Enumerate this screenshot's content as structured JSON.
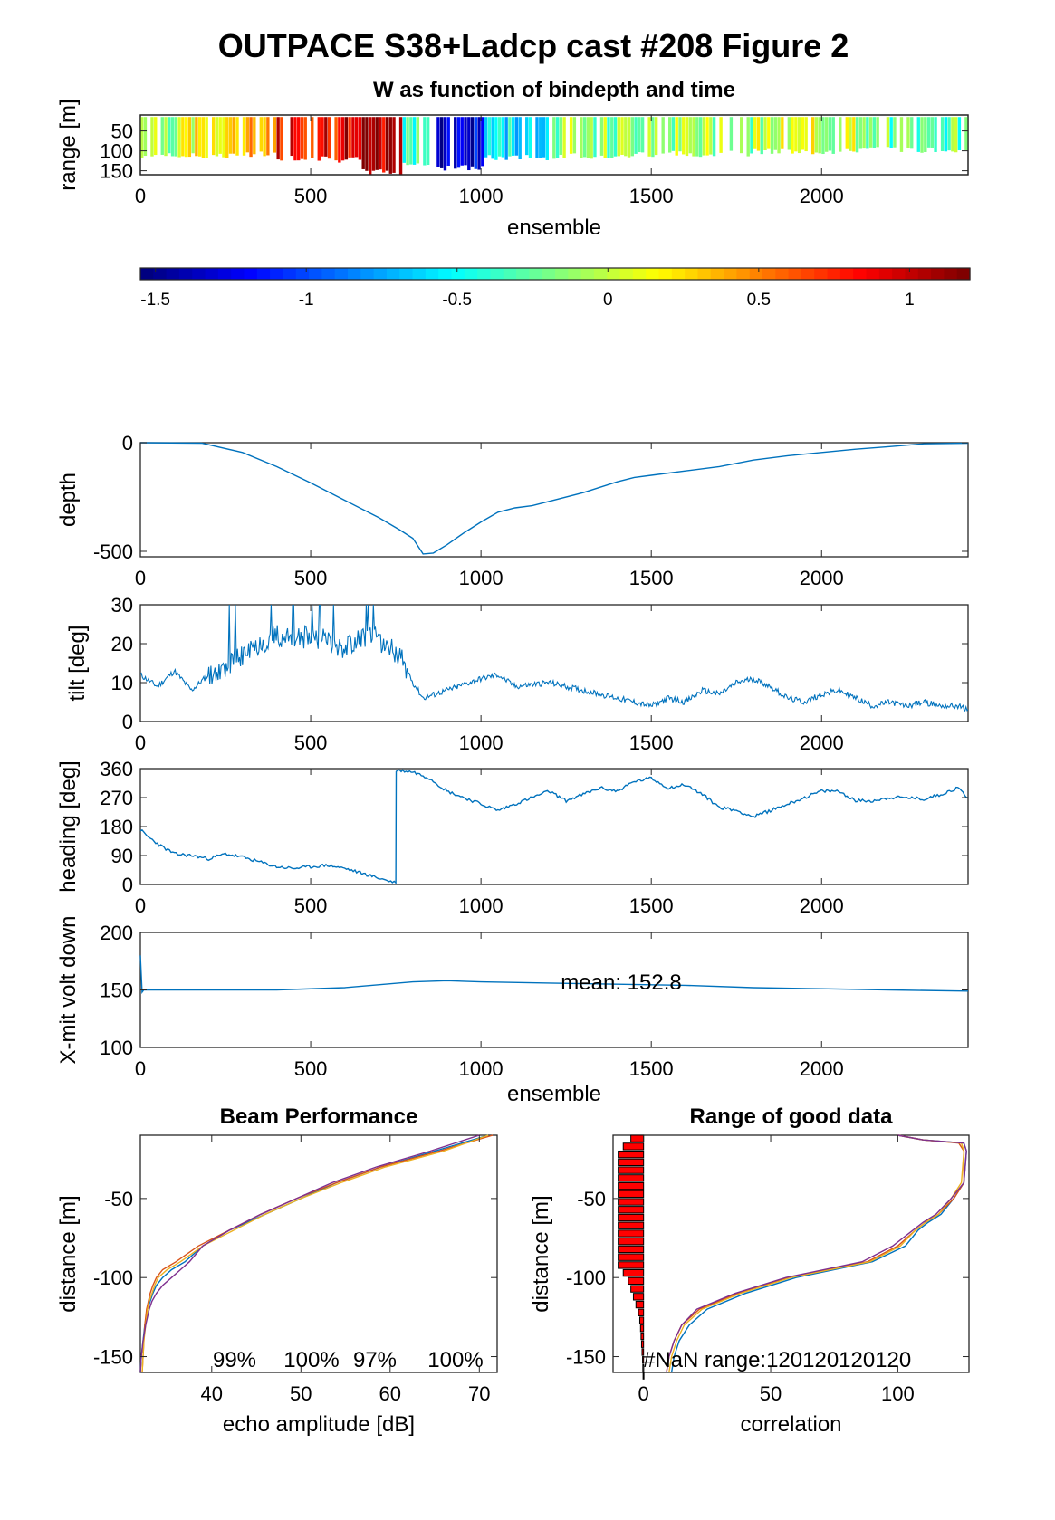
{
  "figure": {
    "title": "OUTPACE S38+Ladcp cast #208 Figure 2"
  },
  "colors": {
    "series_blue": "#0072BD",
    "series_red": "#D95319",
    "series_yellow": "#EDB120",
    "series_purple": "#7E2F8E",
    "bar_red": "#FF0000"
  },
  "chart_data": [
    {
      "id": "w_image",
      "type": "heatmap",
      "title": "W as function of bindepth and time",
      "xlabel": "ensemble",
      "ylabel": "range [m]",
      "xlim": [
        0,
        2430
      ],
      "ylim": [
        160,
        10
      ],
      "xticks": [
        0,
        500,
        1000,
        1500,
        2000
      ],
      "yticks": [
        50,
        100,
        150
      ],
      "colormap": "jet",
      "clim": [
        -1.55,
        1.2
      ],
      "colorbar_ticks": [
        "-1.5",
        "-1",
        "-0.5",
        "0",
        "0.5",
        "1"
      ],
      "colorbar_values": [
        -1.5,
        -1,
        -0.5,
        0,
        0.5,
        1
      ],
      "profiles": [
        {
          "x": [
            0,
            130
          ],
          "w": -0.05,
          "bottom": 120
        },
        {
          "x": [
            130,
            290
          ],
          "w": 0.15,
          "bottom": 120
        },
        {
          "x": [
            290,
            400
          ],
          "w": 0.3,
          "bottom": 115
        },
        {
          "x": [
            400,
            580
          ],
          "w": 0.85,
          "bottom": 125
        },
        {
          "x": [
            580,
            650
          ],
          "w": 0.95,
          "bottom": 130
        },
        {
          "x": [
            650,
            770
          ],
          "w": 1.05,
          "bottom": 160
        },
        {
          "x": [
            770,
            860
          ],
          "w": -0.35,
          "bottom": 140
        },
        {
          "x": [
            860,
            1010
          ],
          "w": -1.3,
          "bottom": 150
        },
        {
          "x": [
            1010,
            1200
          ],
          "w": -0.55,
          "bottom": 125
        },
        {
          "x": [
            1200,
            1450
          ],
          "w": -0.15,
          "bottom": 120
        },
        {
          "x": [
            1450,
            1800
          ],
          "w": -0.1,
          "bottom": 115
        },
        {
          "x": [
            1800,
            2100
          ],
          "w": 0.0,
          "bottom": 110
        },
        {
          "x": [
            2100,
            2430
          ],
          "w": -0.25,
          "bottom": 105
        }
      ]
    },
    {
      "id": "depth",
      "type": "line",
      "title": "",
      "xlabel": "",
      "ylabel": "depth",
      "xlim": [
        0,
        2430
      ],
      "ylim": [
        -525,
        0
      ],
      "xticks": [
        0,
        500,
        1000,
        1500,
        2000
      ],
      "yticks": [
        0,
        -500
      ],
      "x": [
        0,
        180,
        300,
        400,
        500,
        600,
        700,
        760,
        800,
        830,
        860,
        900,
        950,
        1000,
        1050,
        1100,
        1150,
        1200,
        1300,
        1400,
        1450,
        1500,
        1600,
        1700,
        1800,
        1900,
        2000,
        2100,
        2200,
        2300,
        2430
      ],
      "y": [
        0,
        -2,
        -45,
        -110,
        -185,
        -265,
        -345,
        -400,
        -440,
        -512,
        -508,
        -470,
        -415,
        -365,
        -320,
        -300,
        -290,
        -270,
        -230,
        -180,
        -160,
        -150,
        -130,
        -110,
        -80,
        -60,
        -45,
        -30,
        -18,
        -5,
        -2
      ]
    },
    {
      "id": "tilt",
      "type": "line",
      "title": "",
      "xlabel": "",
      "ylabel": "tilt [deg]",
      "xlim": [
        0,
        2430
      ],
      "ylim": [
        0,
        30
      ],
      "xticks": [
        0,
        500,
        1000,
        1500,
        2000
      ],
      "yticks": [
        0,
        10,
        20,
        30
      ],
      "x": [
        0,
        50,
        100,
        150,
        200,
        250,
        300,
        350,
        400,
        450,
        500,
        550,
        600,
        650,
        700,
        750,
        780,
        800,
        830,
        900,
        1000,
        1050,
        1100,
        1200,
        1300,
        1400,
        1450,
        1500,
        1550,
        1600,
        1650,
        1700,
        1750,
        1800,
        1850,
        1900,
        1950,
        2000,
        2050,
        2100,
        2150,
        2200,
        2250,
        2300,
        2350,
        2400,
        2430
      ],
      "y": [
        12,
        9,
        13,
        8,
        12,
        14,
        17,
        20,
        22,
        21,
        22,
        21,
        19,
        22,
        21,
        18,
        14,
        10,
        6,
        8,
        11,
        12,
        9,
        10,
        8,
        6,
        5,
        4,
        6,
        5,
        8,
        7,
        10,
        11,
        9,
        6,
        5,
        7,
        8,
        6,
        4,
        5,
        4,
        5,
        4,
        4,
        3
      ],
      "noise_start": 200,
      "noise_end": 780,
      "noise_max": 30
    },
    {
      "id": "heading",
      "type": "line",
      "title": "",
      "xlabel": "",
      "ylabel": "heading [deg]",
      "xlim": [
        0,
        2430
      ],
      "ylim": [
        0,
        360
      ],
      "xticks": [
        0,
        500,
        1000,
        1500,
        2000
      ],
      "yticks": [
        0,
        90,
        180,
        270,
        360
      ],
      "x": [
        0,
        20,
        60,
        100,
        150,
        200,
        250,
        300,
        350,
        400,
        450,
        500,
        550,
        600,
        650,
        700,
        750,
        751,
        800,
        850,
        900,
        1000,
        1050,
        1100,
        1150,
        1200,
        1250,
        1300,
        1350,
        1400,
        1450,
        1500,
        1550,
        1600,
        1650,
        1700,
        1750,
        1800,
        1850,
        1900,
        1950,
        2000,
        2050,
        2100,
        2150,
        2200,
        2250,
        2300,
        2350,
        2400,
        2430
      ],
      "y": [
        170,
        150,
        120,
        95,
        90,
        80,
        95,
        85,
        70,
        55,
        50,
        55,
        60,
        50,
        35,
        20,
        5,
        355,
        350,
        330,
        290,
        250,
        230,
        250,
        270,
        290,
        260,
        280,
        300,
        290,
        320,
        330,
        300,
        310,
        280,
        240,
        230,
        210,
        230,
        250,
        270,
        290,
        290,
        260,
        260,
        270,
        270,
        265,
        280,
        300,
        270
      ]
    },
    {
      "id": "xmit",
      "type": "line",
      "title": "",
      "xlabel": "ensemble",
      "ylabel": "X-mit volt down",
      "xlim": [
        0,
        2430
      ],
      "ylim": [
        100,
        200
      ],
      "xticks": [
        0,
        500,
        1000,
        1500,
        2000
      ],
      "yticks": [
        100,
        150,
        200
      ],
      "annotation": "mean: 152.8",
      "x": [
        0,
        5,
        10,
        200,
        400,
        600,
        800,
        900,
        1000,
        1200,
        1400,
        1600,
        1800,
        2000,
        2200,
        2430
      ],
      "y": [
        180,
        148,
        150,
        150,
        150,
        152,
        157,
        158,
        157,
        156,
        155,
        154,
        152,
        151,
        150,
        149
      ]
    },
    {
      "id": "beam",
      "type": "line",
      "title": "Beam Performance",
      "xlabel": "echo amplitude [dB]",
      "ylabel": "distance [m]",
      "xlim": [
        32,
        72
      ],
      "ylim": [
        -160,
        -10
      ],
      "xticks": [
        40,
        50,
        60,
        70
      ],
      "yticks": [
        -50,
        -100,
        -150
      ],
      "percent_labels": [
        "99%",
        "100%",
        "97%",
        "100%"
      ],
      "y": [
        -10,
        -20,
        -30,
        -40,
        -50,
        -60,
        -70,
        -80,
        -90,
        -95,
        -100,
        -105,
        -110,
        -115,
        -120,
        -130,
        -140,
        -150,
        -160
      ],
      "series": [
        {
          "name": "",
          "color": "#0072BD",
          "x": [
            71,
            65,
            59,
            54,
            50,
            46,
            42,
            39,
            37,
            35.5,
            34.5,
            33.8,
            33.4,
            33.1,
            32.8,
            32.5,
            32.3,
            32.1,
            32.0
          ]
        },
        {
          "name": "",
          "color": "#D95319",
          "x": [
            71.5,
            65.5,
            59,
            54,
            49.5,
            45.5,
            42,
            38.5,
            36,
            34.5,
            33.8,
            33.4,
            33.1,
            32.9,
            32.7,
            32.5,
            32.4,
            32.3,
            32.2
          ]
        },
        {
          "name": "",
          "color": "#EDB120",
          "x": [
            71,
            66,
            59.5,
            54.5,
            50,
            46,
            42.5,
            39,
            36.5,
            35,
            34,
            33.6,
            33.3,
            33.0,
            32.8,
            32.6,
            32.4,
            32.3,
            32.2
          ]
        },
        {
          "name": "",
          "color": "#7E2F8E",
          "x": [
            70,
            64.5,
            58.5,
            53.5,
            49.5,
            45.5,
            42,
            39,
            37.5,
            36.5,
            35.5,
            34.5,
            33.8,
            33.3,
            33.0,
            32.6,
            32.3,
            32.1,
            32.0
          ]
        }
      ]
    },
    {
      "id": "range_good",
      "type": "line",
      "title": "Range of good data",
      "xlabel": "correlation",
      "ylabel": "distance [m]",
      "xlim": [
        -12,
        128
      ],
      "ylim": [
        -160,
        -10
      ],
      "xticks": [
        0,
        50,
        100
      ],
      "yticks": [
        -50,
        -100,
        -150
      ],
      "annotation": "#NaN range:120120120120",
      "bars": {
        "color": "#FF0000",
        "y": [
          -10,
          -15,
          -20,
          -25,
          -30,
          -35,
          -40,
          -45,
          -50,
          -55,
          -60,
          -65,
          -70,
          -75,
          -80,
          -85,
          -90,
          -95,
          -100,
          -105,
          -110,
          -115,
          -120,
          -125,
          -130,
          -135,
          -140,
          -145,
          -150,
          -155,
          -160
        ],
        "width": [
          5,
          8,
          10,
          10,
          10,
          10,
          10,
          10,
          10,
          10,
          10,
          10,
          10,
          10,
          10,
          10,
          10,
          8,
          6,
          5,
          4,
          3,
          2,
          1.5,
          1.2,
          1,
          0.8,
          0.6,
          0.4,
          0.3,
          0.2
        ]
      },
      "y": [
        -10,
        -13,
        -15,
        -20,
        -40,
        -50,
        -60,
        -65,
        -70,
        -80,
        -90,
        -100,
        -110,
        -120,
        -130,
        -140,
        -145,
        -150,
        -160
      ],
      "series": [
        {
          "name": "",
          "color": "#0072BD",
          "x": [
            100,
            110,
            126,
            127,
            126,
            122,
            117,
            112,
            108,
            103,
            90,
            60,
            40,
            25,
            18,
            14,
            13,
            12,
            11
          ]
        },
        {
          "name": "",
          "color": "#D95319",
          "x": [
            100,
            110,
            124,
            126,
            126,
            122,
            116,
            111,
            107,
            100,
            88,
            57,
            37,
            22,
            15,
            12,
            11,
            10,
            9
          ]
        },
        {
          "name": "",
          "color": "#EDB120",
          "x": [
            100,
            110,
            125,
            126,
            125,
            121,
            116,
            111,
            107,
            101,
            89,
            58,
            38,
            23,
            16,
            13,
            12,
            11,
            10
          ]
        },
        {
          "name": "",
          "color": "#7E2F8E",
          "x": [
            100,
            110,
            126,
            127,
            126,
            121,
            115,
            110,
            106,
            98,
            86,
            56,
            36,
            21,
            15,
            12,
            11,
            10,
            9
          ]
        }
      ]
    }
  ]
}
